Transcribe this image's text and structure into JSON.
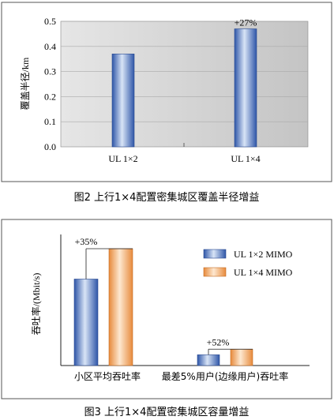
{
  "chart_data": [
    {
      "type": "bar",
      "caption": "图2   上行1×4配置密集城区覆盖半径增益",
      "ylabel": "覆盖半径/km",
      "ylim": [
        0,
        0.5
      ],
      "yticks": [
        "0.0",
        "0.1",
        "0.2",
        "0.3",
        "0.4",
        "0.5"
      ],
      "categories": [
        "UL 1×2",
        "UL 1×4"
      ],
      "values": [
        0.37,
        0.47
      ],
      "annotations": [
        {
          "category": "UL 1×4",
          "text": "+27%"
        }
      ],
      "colors": {
        "bar": "#5a80c8",
        "plot_bg": "#d4d4d4"
      }
    },
    {
      "type": "bar",
      "caption": "图3   上行1×4配置密集城区容量增益",
      "ylabel": "吞吐率/(Mbit/s)",
      "categories": [
        "小区平均吞吐率",
        "最差5%用户(边缘用户)吞吐率"
      ],
      "series": [
        {
          "name": "UL 1×2 MIMO",
          "values": [
            0.74,
            0.092
          ],
          "color": "#5a80c8"
        },
        {
          "name": "UL 1×4 MIMO",
          "values": [
            1.0,
            0.14
          ],
          "color": "#f2b47a"
        }
      ],
      "annotations": [
        {
          "category": "小区平均吞吐率",
          "text": "+35%"
        },
        {
          "category": "最差5%用户(边缘用户)吞吐率",
          "text": "+52%"
        }
      ],
      "legend_position": "top-right"
    }
  ]
}
